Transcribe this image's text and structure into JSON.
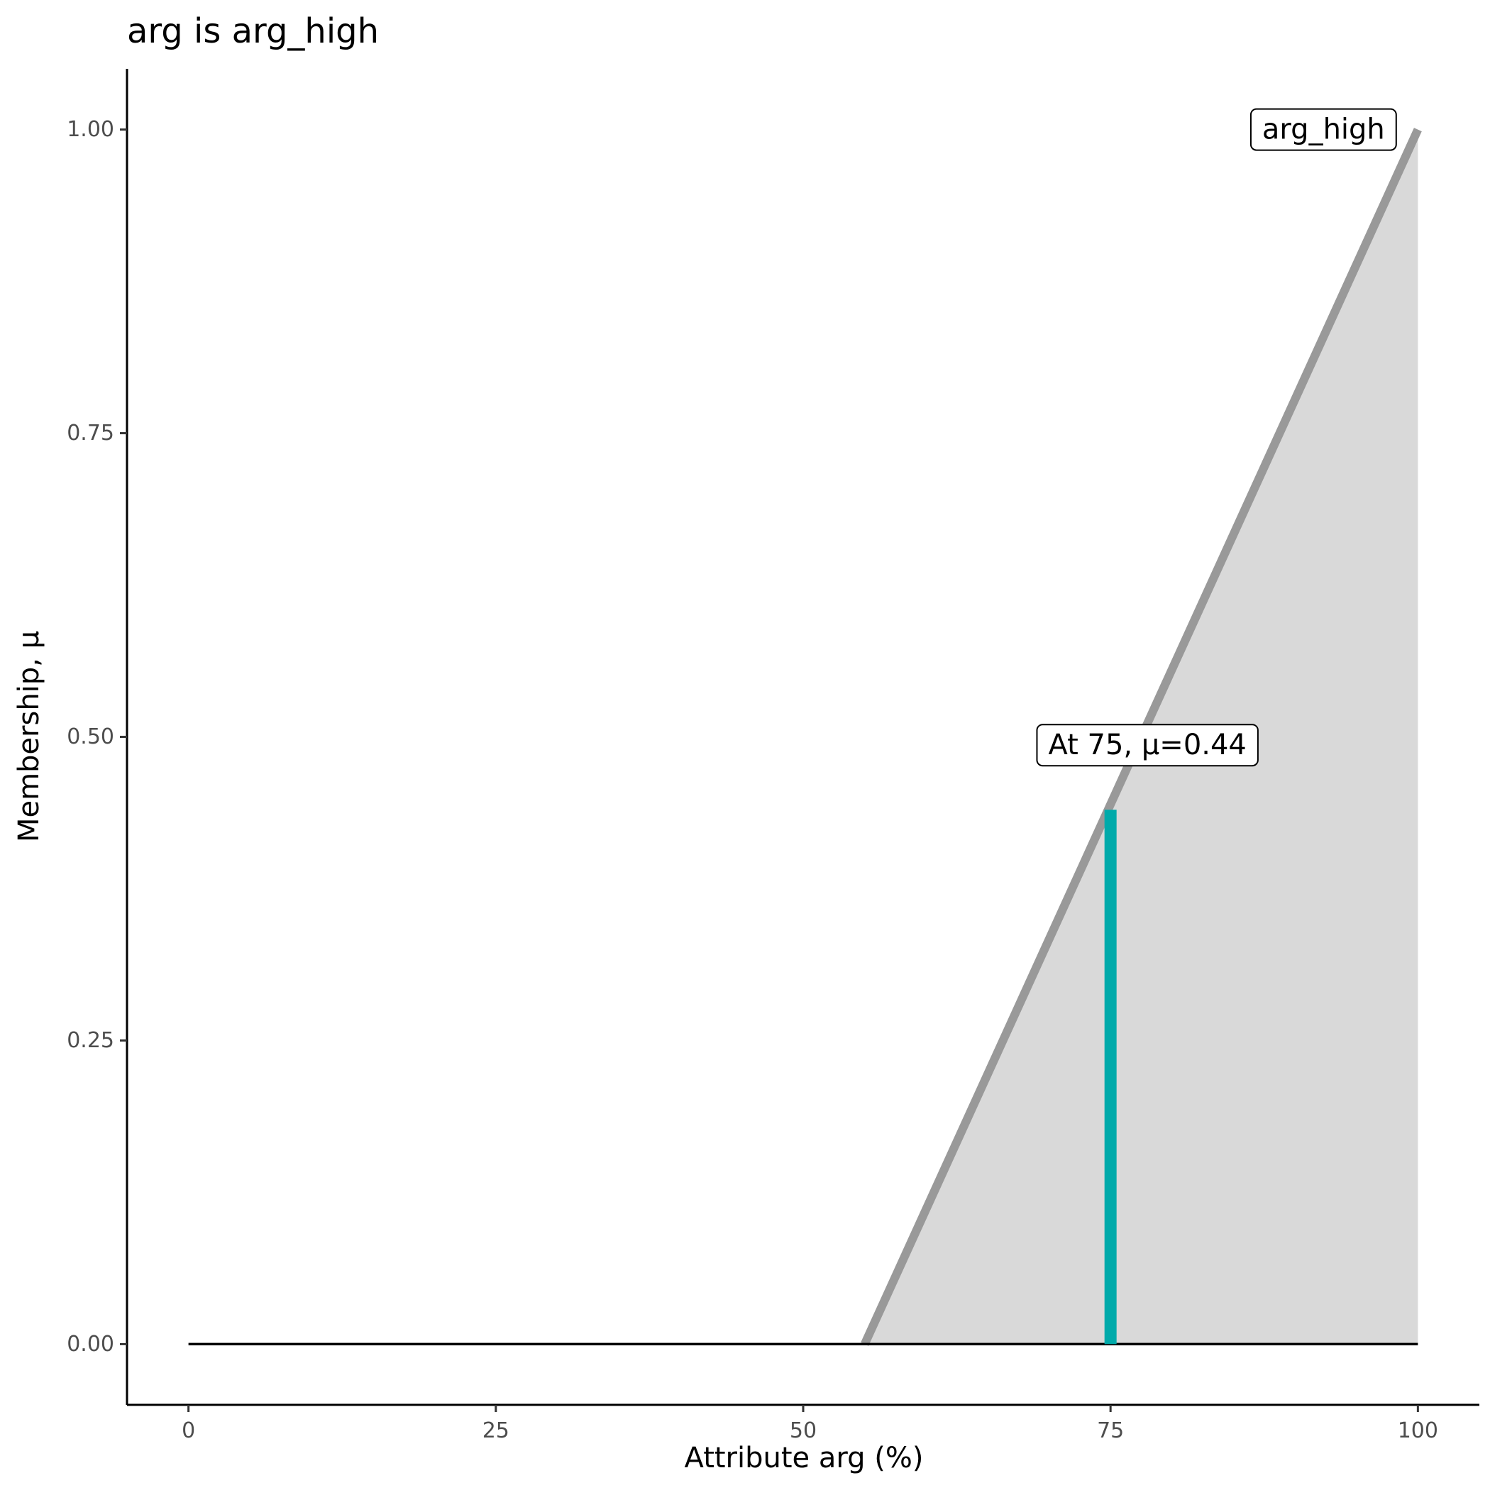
{
  "chart_data": {
    "type": "area",
    "title": "arg is arg_high",
    "xlabel": "Attribute arg (%)",
    "ylabel": "Membership, μ",
    "xlim": [
      -5,
      105
    ],
    "ylim": [
      -0.05,
      1.05
    ],
    "xticks": [
      0,
      25,
      50,
      75,
      100
    ],
    "xtick_labels": [
      "0",
      "25",
      "50",
      "75",
      "100"
    ],
    "yticks": [
      0,
      0.25,
      0.5,
      0.75,
      1.0
    ],
    "ytick_labels": [
      "0.00",
      "0.25",
      "0.50",
      "0.75",
      "1.00"
    ],
    "grid": false,
    "series": [
      {
        "name": "arg_high",
        "x": [
          0,
          55,
          100
        ],
        "y": [
          0,
          0,
          1
        ],
        "color": "#999999",
        "fill": "#d9d9d9"
      }
    ],
    "baseline": {
      "x": [
        0,
        100
      ],
      "y": 0
    },
    "highlight": {
      "x": 75,
      "mu": 0.44,
      "color": "#00aaaa",
      "label": "At 75, μ=0.44"
    },
    "set_label": "arg_high"
  }
}
